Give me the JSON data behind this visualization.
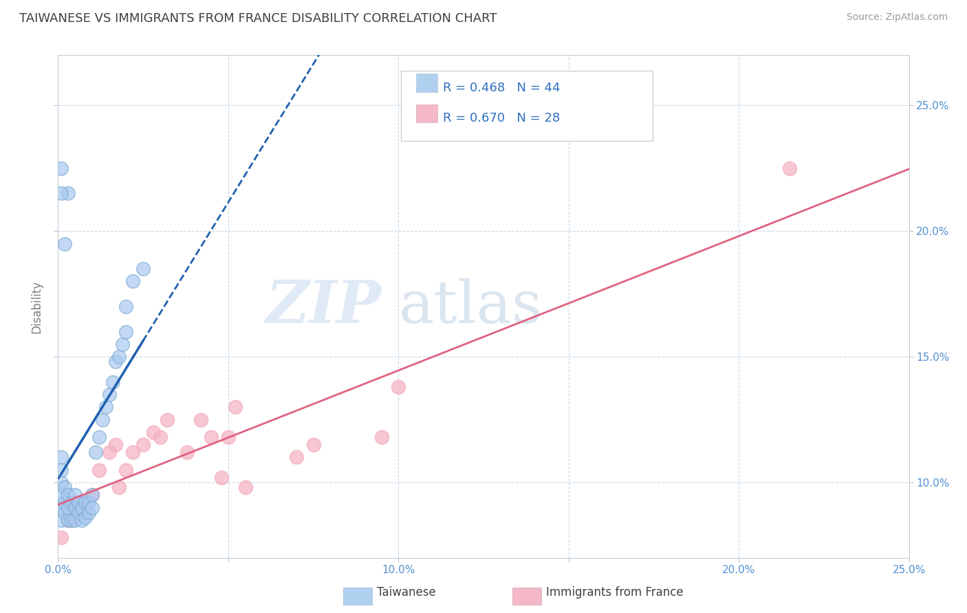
{
  "title": "TAIWANESE VS IMMIGRANTS FROM FRANCE DISABILITY CORRELATION CHART",
  "source": "Source: ZipAtlas.com",
  "ylabel": "Disability",
  "xlim": [
    0.0,
    0.25
  ],
  "ylim": [
    0.07,
    0.27
  ],
  "plot_ylim": [
    0.07,
    0.27
  ],
  "xticks": [
    0.0,
    0.05,
    0.1,
    0.15,
    0.2,
    0.25
  ],
  "xticklabels": [
    "0.0%",
    "",
    "10.0%",
    "",
    "20.0%",
    "25.0%"
  ],
  "yticks_right": [
    0.1,
    0.15,
    0.2,
    0.25
  ],
  "yticklabels_right": [
    "10.0%",
    "15.0%",
    "20.0%",
    "25.0%"
  ],
  "taiwanese_R": 0.468,
  "taiwanese_N": 44,
  "france_R": 0.67,
  "france_N": 28,
  "taiwanese_color": "#a8c8f0",
  "taiwanese_edge_color": "#7aaad0",
  "taiwanese_line_color": "#2060b0",
  "france_color": "#f4b0c0",
  "france_edge_color": "#d888a0",
  "france_line_color": "#e06080",
  "legend_color_taiwanese": "#b0d0f0",
  "legend_color_france": "#f4b8c8",
  "watermark_zip": "ZIP",
  "watermark_atlas": "atlas",
  "background_color": "#ffffff",
  "title_color": "#404040",
  "axis_label_color": "#5090d0",
  "grid_color": "#c8d8e8",
  "taiwanese_x": [
    0.001,
    0.001,
    0.001,
    0.001,
    0.001,
    0.001,
    0.002,
    0.002,
    0.002,
    0.003,
    0.003,
    0.003,
    0.004,
    0.004,
    0.005,
    0.005,
    0.005,
    0.006,
    0.006,
    0.007,
    0.007,
    0.008,
    0.008,
    0.009,
    0.009,
    0.01,
    0.01,
    0.011,
    0.012,
    0.013,
    0.014,
    0.015,
    0.016,
    0.017,
    0.018,
    0.019,
    0.02,
    0.02,
    0.022,
    0.025,
    0.003,
    0.002,
    0.001,
    0.001
  ],
  "taiwanese_y": [
    0.085,
    0.09,
    0.095,
    0.1,
    0.105,
    0.11,
    0.088,
    0.092,
    0.098,
    0.085,
    0.09,
    0.095,
    0.085,
    0.092,
    0.085,
    0.09,
    0.095,
    0.088,
    0.092,
    0.085,
    0.09,
    0.086,
    0.092,
    0.088,
    0.092,
    0.09,
    0.095,
    0.112,
    0.118,
    0.125,
    0.13,
    0.135,
    0.14,
    0.148,
    0.15,
    0.155,
    0.16,
    0.17,
    0.18,
    0.185,
    0.215,
    0.195,
    0.215,
    0.225
  ],
  "france_x": [
    0.001,
    0.003,
    0.005,
    0.007,
    0.008,
    0.01,
    0.012,
    0.015,
    0.017,
    0.018,
    0.02,
    0.022,
    0.025,
    0.028,
    0.03,
    0.032,
    0.038,
    0.042,
    0.045,
    0.048,
    0.05,
    0.052,
    0.055,
    0.07,
    0.075,
    0.095,
    0.1,
    0.215
  ],
  "france_y": [
    0.078,
    0.085,
    0.09,
    0.09,
    0.088,
    0.095,
    0.105,
    0.112,
    0.115,
    0.098,
    0.105,
    0.112,
    0.115,
    0.12,
    0.118,
    0.125,
    0.112,
    0.125,
    0.118,
    0.102,
    0.118,
    0.13,
    0.098,
    0.11,
    0.115,
    0.118,
    0.138,
    0.225
  ]
}
